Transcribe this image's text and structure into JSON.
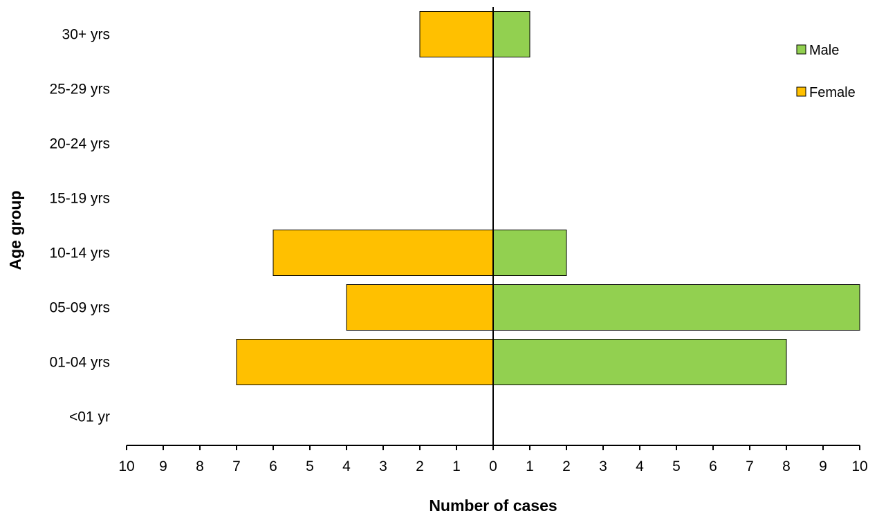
{
  "chart_data": {
    "type": "bar",
    "orientation": "horizontal-population-pyramid",
    "title": "",
    "xlabel": "Number of cases",
    "ylabel": "Age group",
    "categories": [
      "<01 yr",
      "01-04 yrs",
      "05-09 yrs",
      "10-14 yrs",
      "15-19 yrs",
      "20-24 yrs",
      "25-29 yrs",
      "30+ yrs"
    ],
    "series": [
      {
        "name": "Male",
        "side": "right",
        "color": "#92D050",
        "values": [
          0,
          8,
          10,
          2,
          0,
          0,
          0,
          1
        ]
      },
      {
        "name": "Female",
        "side": "left",
        "color": "#FFC000",
        "values": [
          0,
          7,
          4,
          6,
          0,
          0,
          0,
          2
        ]
      }
    ],
    "xlim": [
      -10,
      10
    ],
    "x_ticks": [
      -10,
      -9,
      -8,
      -7,
      -6,
      -5,
      -4,
      -3,
      -2,
      -1,
      0,
      1,
      2,
      3,
      4,
      5,
      6,
      7,
      8,
      9,
      10
    ],
    "x_tick_labels": [
      "10",
      "9",
      "8",
      "7",
      "6",
      "5",
      "4",
      "3",
      "2",
      "1",
      "0",
      "1",
      "2",
      "3",
      "4",
      "5",
      "6",
      "7",
      "8",
      "9",
      "10"
    ],
    "grid": false,
    "legend": {
      "position": "top-right",
      "entries": [
        "Male",
        "Female"
      ]
    }
  }
}
